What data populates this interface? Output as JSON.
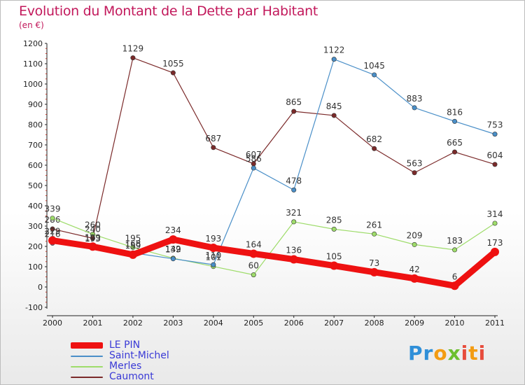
{
  "header": {
    "title": "Evolution du Montant de la Dette par Habitant",
    "unit": "(en €)"
  },
  "logo": {
    "text": "Proxiti"
  },
  "chart_data": {
    "type": "line",
    "title": "Evolution du Montant de la Dette par Habitant",
    "ylabel": "(en €)",
    "categories": [
      "2000",
      "2001",
      "2002",
      "2003",
      "2004",
      "2005",
      "2006",
      "2007",
      "2008",
      "2009",
      "2010",
      "2011"
    ],
    "ylim": [
      -100,
      1200
    ],
    "yticks": [
      -100,
      0,
      100,
      200,
      300,
      400,
      500,
      600,
      700,
      800,
      900,
      1000,
      1100,
      1200
    ],
    "grid": false,
    "legend_position": "bottom-left",
    "series": [
      {
        "name": "Caumont",
        "color": "#7b2a2a",
        "values": [
          286,
          240,
          1129,
          1055,
          687,
          607,
          865,
          845,
          682,
          563,
          665,
          604
        ],
        "labels": [
          "286",
          "240",
          "1129",
          "1055",
          "687",
          "607",
          "865",
          "845",
          "682",
          "563",
          "665",
          "604"
        ]
      },
      {
        "name": "Merles",
        "color": "#9edc6a",
        "values": [
          339,
          260,
          195,
          142,
          101,
          60,
          321,
          285,
          261,
          209,
          183,
          314
        ],
        "labels": [
          "339",
          "260",
          "195",
          "142",
          "101",
          "60",
          "321",
          "285",
          "261",
          "209",
          "183",
          "314"
        ]
      },
      {
        "name": "Saint-Michel",
        "color": "#4a8fc8",
        "values": [
          216,
          193,
          168,
          139,
          110,
          586,
          478,
          1122,
          1045,
          883,
          816,
          753
        ],
        "labels": [
          "216",
          "193",
          "168",
          "139",
          "110",
          "586",
          "478",
          "1122",
          "1045",
          "883",
          "816",
          "753"
        ]
      },
      {
        "name": "LE PIN",
        "color": "#ee1111",
        "values": [
          229,
          199,
          159,
          234,
          193,
          164,
          136,
          105,
          73,
          42,
          6,
          173
        ],
        "labels": [
          "229",
          "199",
          "159",
          "234",
          "193",
          "164",
          "136",
          "105",
          "73",
          "42",
          "6",
          "173"
        ]
      }
    ]
  }
}
